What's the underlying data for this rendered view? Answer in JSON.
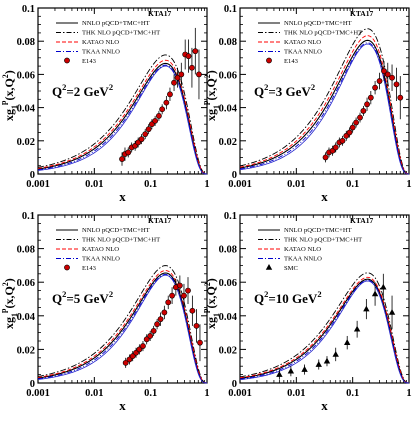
{
  "colors": {
    "nnlo": "#000000",
    "thk": "#000000",
    "katao": "#ff0000",
    "tkaa": "#0000cc",
    "e143_fill": "#cc0000",
    "smc_fill": "#000000",
    "curve_blue": "#2222cc",
    "curve_purple": "#aa00aa"
  },
  "chart_data": [
    {
      "type": "line",
      "panel": "top-left",
      "xscale": "log",
      "xlim": [
        0.001,
        1
      ],
      "ylim": [
        0,
        0.1
      ],
      "x_ticks": [
        "0.001",
        "0.01",
        "0.1",
        "1"
      ],
      "y_ticks": [
        "0",
        "0.02",
        "0.04",
        "0.06",
        "0.08",
        "0.1"
      ],
      "xlabel": "x",
      "ylabel_main": "xg",
      "ylabel_sub": "1",
      "ylabel_sup": "p",
      "ylabel_tail": "(x,Q",
      "ylabel_tail_sup": "2",
      "ylabel_close": ")",
      "q2_label": "Q",
      "q2_sup": "2",
      "q2_value": "=2 GeV",
      "q2_unit_sup": "2",
      "legend_title": "KTA17",
      "legend": [
        "NNLO pQCD+TMC+HT",
        "THK NLO pQCD+TMC+HT",
        "KATAO NLO",
        "TKAA NNLO",
        "E143"
      ],
      "curve_peak": [
        0.33,
        0.054
      ],
      "data_points": [
        {
          "x": 0.031,
          "y": 0.009,
          "err": 0.004
        },
        {
          "x": 0.035,
          "y": 0.012,
          "err": 0.004
        },
        {
          "x": 0.04,
          "y": 0.013,
          "err": 0.003
        },
        {
          "x": 0.046,
          "y": 0.016,
          "err": 0.003
        },
        {
          "x": 0.053,
          "y": 0.017,
          "err": 0.003
        },
        {
          "x": 0.06,
          "y": 0.019,
          "err": 0.003
        },
        {
          "x": 0.069,
          "y": 0.021,
          "err": 0.003
        },
        {
          "x": 0.08,
          "y": 0.024,
          "err": 0.003
        },
        {
          "x": 0.092,
          "y": 0.027,
          "err": 0.003
        },
        {
          "x": 0.105,
          "y": 0.03,
          "err": 0.003
        },
        {
          "x": 0.12,
          "y": 0.032,
          "err": 0.003
        },
        {
          "x": 0.14,
          "y": 0.035,
          "err": 0.003
        },
        {
          "x": 0.16,
          "y": 0.039,
          "err": 0.003
        },
        {
          "x": 0.19,
          "y": 0.043,
          "err": 0.004
        },
        {
          "x": 0.22,
          "y": 0.048,
          "err": 0.004
        },
        {
          "x": 0.26,
          "y": 0.055,
          "err": 0.005
        },
        {
          "x": 0.3,
          "y": 0.058,
          "err": 0.006
        },
        {
          "x": 0.35,
          "y": 0.06,
          "err": 0.007
        },
        {
          "x": 0.41,
          "y": 0.072,
          "err": 0.009
        },
        {
          "x": 0.47,
          "y": 0.071,
          "err": 0.01
        },
        {
          "x": 0.54,
          "y": 0.064,
          "err": 0.012
        },
        {
          "x": 0.62,
          "y": 0.074,
          "err": 0.014
        },
        {
          "x": 0.72,
          "y": 0.06,
          "err": 0.015
        }
      ],
      "marker": "circle"
    },
    {
      "type": "line",
      "panel": "top-right",
      "xscale": "log",
      "xlim": [
        0.001,
        1
      ],
      "ylim": [
        0,
        0.1
      ],
      "x_ticks": [
        "0.001",
        "0.01",
        "0.1",
        "1"
      ],
      "y_ticks": [
        "0",
        "0.02",
        "0.04",
        "0.06",
        "0.08",
        "0.1"
      ],
      "xlabel": "x",
      "ylabel_main": "xg",
      "ylabel_sub": "1",
      "ylabel_sup": "p",
      "ylabel_tail": "(x,Q",
      "ylabel_tail_sup": "2",
      "ylabel_close": ")",
      "q2_label": "Q",
      "q2_sup": "2",
      "q2_value": "=3 GeV",
      "q2_unit_sup": "2",
      "legend_title": "KTA17",
      "legend": [
        "NNLO pQCD+TMC+HT",
        "THK NLO pQCD+TMC+HT",
        "KATAO NLO",
        "TKAA NNLO",
        "E143"
      ],
      "curve_peak": [
        0.36,
        0.06
      ],
      "data_points": [
        {
          "x": 0.033,
          "y": 0.01,
          "err": 0.003
        },
        {
          "x": 0.038,
          "y": 0.013,
          "err": 0.003
        },
        {
          "x": 0.044,
          "y": 0.014,
          "err": 0.003
        },
        {
          "x": 0.05,
          "y": 0.016,
          "err": 0.003
        },
        {
          "x": 0.058,
          "y": 0.019,
          "err": 0.003
        },
        {
          "x": 0.066,
          "y": 0.02,
          "err": 0.003
        },
        {
          "x": 0.077,
          "y": 0.023,
          "err": 0.003
        },
        {
          "x": 0.088,
          "y": 0.025,
          "err": 0.003
        },
        {
          "x": 0.1,
          "y": 0.028,
          "err": 0.003
        },
        {
          "x": 0.115,
          "y": 0.031,
          "err": 0.003
        },
        {
          "x": 0.135,
          "y": 0.034,
          "err": 0.003
        },
        {
          "x": 0.155,
          "y": 0.038,
          "err": 0.003
        },
        {
          "x": 0.18,
          "y": 0.042,
          "err": 0.004
        },
        {
          "x": 0.21,
          "y": 0.046,
          "err": 0.004
        },
        {
          "x": 0.25,
          "y": 0.052,
          "err": 0.004
        },
        {
          "x": 0.3,
          "y": 0.056,
          "err": 0.005
        },
        {
          "x": 0.36,
          "y": 0.062,
          "err": 0.006
        },
        {
          "x": 0.42,
          "y": 0.06,
          "err": 0.007
        },
        {
          "x": 0.5,
          "y": 0.058,
          "err": 0.008
        },
        {
          "x": 0.6,
          "y": 0.054,
          "err": 0.01
        },
        {
          "x": 0.7,
          "y": 0.046,
          "err": 0.013
        }
      ],
      "marker": "circle"
    },
    {
      "type": "line",
      "panel": "bottom-left",
      "xscale": "log",
      "xlim": [
        0.001,
        1
      ],
      "ylim": [
        0,
        0.1
      ],
      "x_ticks": [
        "0.001",
        "0.01",
        "0.1",
        "1"
      ],
      "y_ticks": [
        "0",
        "0.02",
        "0.04",
        "0.06",
        "0.08",
        "0.1"
      ],
      "xlabel": "x",
      "ylabel_main": "xg",
      "ylabel_sub": "1",
      "ylabel_sup": "p",
      "ylabel_tail": "(x,Q",
      "ylabel_tail_sup": "2",
      "ylabel_close": ")",
      "q2_label": "Q",
      "q2_sup": "2",
      "q2_value": "=5 GeV",
      "q2_unit_sup": "2",
      "legend_title": "KTA17",
      "legend": [
        "NNLO pQCD+TMC+HT",
        "THK NLO pQCD+TMC+HT",
        "KATAO NLO",
        "TKAA NNLO",
        "E143"
      ],
      "curve_peak": [
        0.3,
        0.057
      ],
      "data_points": [
        {
          "x": 0.036,
          "y": 0.012,
          "err": 0.003
        },
        {
          "x": 0.042,
          "y": 0.014,
          "err": 0.003
        },
        {
          "x": 0.048,
          "y": 0.016,
          "err": 0.003
        },
        {
          "x": 0.055,
          "y": 0.018,
          "err": 0.003
        },
        {
          "x": 0.063,
          "y": 0.02,
          "err": 0.003
        },
        {
          "x": 0.073,
          "y": 0.022,
          "err": 0.003
        },
        {
          "x": 0.085,
          "y": 0.026,
          "err": 0.003
        },
        {
          "x": 0.098,
          "y": 0.028,
          "err": 0.003
        },
        {
          "x": 0.113,
          "y": 0.031,
          "err": 0.003
        },
        {
          "x": 0.13,
          "y": 0.035,
          "err": 0.003
        },
        {
          "x": 0.15,
          "y": 0.038,
          "err": 0.004
        },
        {
          "x": 0.175,
          "y": 0.042,
          "err": 0.004
        },
        {
          "x": 0.205,
          "y": 0.048,
          "err": 0.004
        },
        {
          "x": 0.24,
          "y": 0.052,
          "err": 0.005
        },
        {
          "x": 0.28,
          "y": 0.057,
          "err": 0.005
        },
        {
          "x": 0.33,
          "y": 0.058,
          "err": 0.006
        },
        {
          "x": 0.39,
          "y": 0.052,
          "err": 0.007
        },
        {
          "x": 0.46,
          "y": 0.055,
          "err": 0.008
        },
        {
          "x": 0.55,
          "y": 0.043,
          "err": 0.009
        },
        {
          "x": 0.65,
          "y": 0.034,
          "err": 0.01
        },
        {
          "x": 0.75,
          "y": 0.024,
          "err": 0.011
        }
      ],
      "marker": "circle"
    },
    {
      "type": "line",
      "panel": "bottom-right",
      "xscale": "log",
      "xlim": [
        0.001,
        1
      ],
      "ylim": [
        0,
        0.1
      ],
      "x_ticks": [
        "0.001",
        "0.01",
        "0.1",
        "1"
      ],
      "y_ticks": [
        "0",
        "0.02",
        "0.04",
        "0.06",
        "0.08",
        "0.1"
      ],
      "xlabel": "x",
      "ylabel_main": "xg",
      "ylabel_sub": "1",
      "ylabel_sup": "p",
      "ylabel_tail": "(x,Q",
      "ylabel_tail_sup": "2",
      "ylabel_close": ")",
      "q2_label": "Q",
      "q2_sup": "2",
      "q2_value": "=10 GeV",
      "q2_unit_sup": "2",
      "legend_title": "KTA17",
      "legend": [
        "NNLO pQCD+TMC+HT",
        "THK NLO pQCD+TMC+HT",
        "KATAO NLO",
        "TKAA NNLO",
        "SMC"
      ],
      "curve_peak": [
        0.28,
        0.056
      ],
      "data_points": [
        {
          "x": 0.005,
          "y": 0.005,
          "err": 0.003
        },
        {
          "x": 0.008,
          "y": 0.007,
          "err": 0.003
        },
        {
          "x": 0.014,
          "y": 0.008,
          "err": 0.003
        },
        {
          "x": 0.025,
          "y": 0.011,
          "err": 0.003
        },
        {
          "x": 0.035,
          "y": 0.013,
          "err": 0.003
        },
        {
          "x": 0.05,
          "y": 0.017,
          "err": 0.004
        },
        {
          "x": 0.08,
          "y": 0.024,
          "err": 0.004
        },
        {
          "x": 0.12,
          "y": 0.032,
          "err": 0.005
        },
        {
          "x": 0.175,
          "y": 0.044,
          "err": 0.006
        },
        {
          "x": 0.25,
          "y": 0.053,
          "err": 0.007
        },
        {
          "x": 0.35,
          "y": 0.057,
          "err": 0.008
        },
        {
          "x": 0.5,
          "y": 0.042,
          "err": 0.01
        }
      ],
      "marker": "triangle"
    }
  ]
}
